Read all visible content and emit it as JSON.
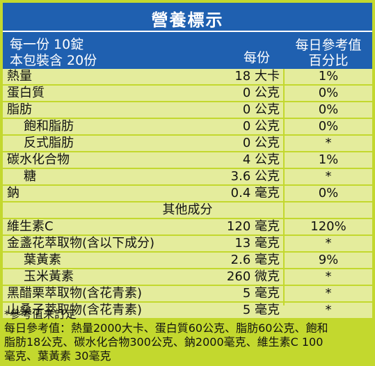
{
  "title": "營養標示",
  "header": {
    "serving_size": "每一份 10錠",
    "servings_per_pack": "本包裝含 20份",
    "per_serving": "每份",
    "dv_line1": "每日參考值",
    "dv_line2": "百分比"
  },
  "rows": [
    {
      "name": "熱量",
      "amount": "18 大卡",
      "pct": "1%"
    },
    {
      "name": "蛋白質",
      "amount": "0 公克",
      "pct": "0%"
    },
    {
      "name": "脂肪",
      "amount": "0 公克",
      "pct": "0%"
    },
    {
      "name": "飽和脂肪",
      "amount": "0 公克",
      "pct": "0%"
    },
    {
      "name": "反式脂肪",
      "amount": "0 公克",
      "pct": "*"
    },
    {
      "name": "碳水化合物",
      "amount": "4 公克",
      "pct": "1%"
    },
    {
      "name": "糖",
      "amount": "3.6 公克",
      "pct": "*"
    },
    {
      "name": "鈉",
      "amount": "0.4 毫克",
      "pct": "0%"
    }
  ],
  "other_section": "其他成分",
  "other_rows": [
    {
      "name": "維生素C",
      "amount": "120 毫克",
      "pct": "120%"
    },
    {
      "name": "金盞花萃取物(含以下成分)",
      "amount": "13 毫克",
      "pct": "*"
    },
    {
      "name": "葉黃素",
      "amount": "2.6 毫克",
      "pct": "9%"
    },
    {
      "name": "玉米黃素",
      "amount": "260 微克",
      "pct": "*"
    },
    {
      "name": "黑醋栗萃取物(含花青素)",
      "amount": "5 毫克",
      "pct": "*"
    },
    {
      "name": "山桑子萃取物(含花青素)",
      "amount": "5 毫克",
      "pct": "*"
    }
  ],
  "footnotes": [
    "*參考值未訂定",
    "每日參考值：熱量2000大卡、蛋白質60公克、脂肪60公克、飽和",
    "脂肪18公克、碳水化合物300公克、鈉2000毫克、維生素C 100",
    "毫克、葉黃素 30毫克"
  ],
  "colors": {
    "header_blue": "#1f60b0",
    "green": "#c3d82e",
    "light_row": "#e4ec9c"
  }
}
